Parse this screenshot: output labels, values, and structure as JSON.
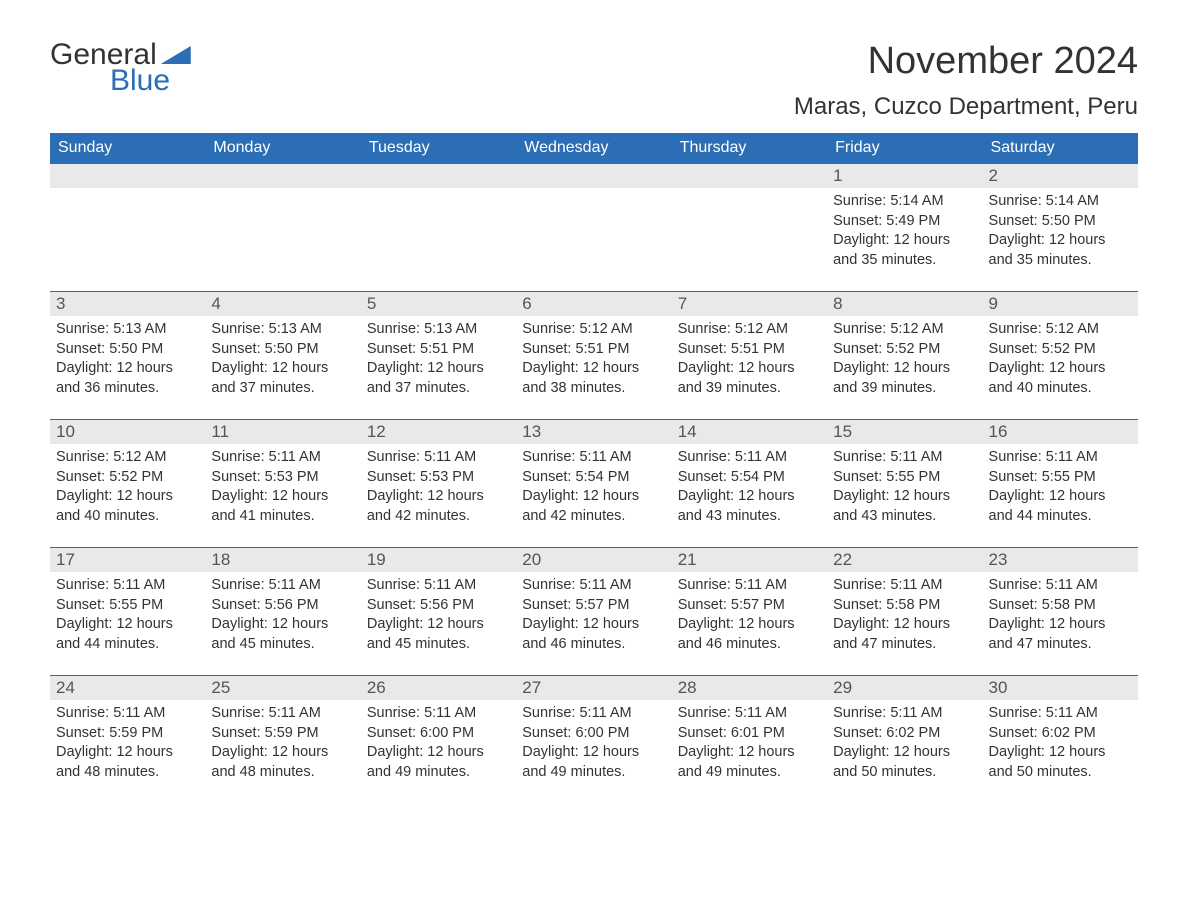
{
  "logo": {
    "text_general": "General",
    "text_blue": "Blue"
  },
  "title": "November 2024",
  "location": "Maras, Cuzco Department, Peru",
  "styling": {
    "header_bg": "#2b6eb5",
    "header_text": "#ffffff",
    "day_num_bg": "#e9e9e9",
    "day_num_text": "#555555",
    "body_text": "#333333",
    "row_border": "#2b6eb5",
    "background": "#ffffff",
    "columns": 7,
    "rows": 5,
    "font_family": "Arial",
    "title_fontsize": 38,
    "location_fontsize": 24,
    "header_fontsize": 16,
    "daynum_fontsize": 17,
    "content_fontsize": 14.5
  },
  "weekdays": [
    "Sunday",
    "Monday",
    "Tuesday",
    "Wednesday",
    "Thursday",
    "Friday",
    "Saturday"
  ],
  "weeks": [
    [
      null,
      null,
      null,
      null,
      null,
      {
        "n": "1",
        "sunrise": "Sunrise: 5:14 AM",
        "sunset": "Sunset: 5:49 PM",
        "dl1": "Daylight: 12 hours",
        "dl2": "and 35 minutes."
      },
      {
        "n": "2",
        "sunrise": "Sunrise: 5:14 AM",
        "sunset": "Sunset: 5:50 PM",
        "dl1": "Daylight: 12 hours",
        "dl2": "and 35 minutes."
      }
    ],
    [
      {
        "n": "3",
        "sunrise": "Sunrise: 5:13 AM",
        "sunset": "Sunset: 5:50 PM",
        "dl1": "Daylight: 12 hours",
        "dl2": "and 36 minutes."
      },
      {
        "n": "4",
        "sunrise": "Sunrise: 5:13 AM",
        "sunset": "Sunset: 5:50 PM",
        "dl1": "Daylight: 12 hours",
        "dl2": "and 37 minutes."
      },
      {
        "n": "5",
        "sunrise": "Sunrise: 5:13 AM",
        "sunset": "Sunset: 5:51 PM",
        "dl1": "Daylight: 12 hours",
        "dl2": "and 37 minutes."
      },
      {
        "n": "6",
        "sunrise": "Sunrise: 5:12 AM",
        "sunset": "Sunset: 5:51 PM",
        "dl1": "Daylight: 12 hours",
        "dl2": "and 38 minutes."
      },
      {
        "n": "7",
        "sunrise": "Sunrise: 5:12 AM",
        "sunset": "Sunset: 5:51 PM",
        "dl1": "Daylight: 12 hours",
        "dl2": "and 39 minutes."
      },
      {
        "n": "8",
        "sunrise": "Sunrise: 5:12 AM",
        "sunset": "Sunset: 5:52 PM",
        "dl1": "Daylight: 12 hours",
        "dl2": "and 39 minutes."
      },
      {
        "n": "9",
        "sunrise": "Sunrise: 5:12 AM",
        "sunset": "Sunset: 5:52 PM",
        "dl1": "Daylight: 12 hours",
        "dl2": "and 40 minutes."
      }
    ],
    [
      {
        "n": "10",
        "sunrise": "Sunrise: 5:12 AM",
        "sunset": "Sunset: 5:52 PM",
        "dl1": "Daylight: 12 hours",
        "dl2": "and 40 minutes."
      },
      {
        "n": "11",
        "sunrise": "Sunrise: 5:11 AM",
        "sunset": "Sunset: 5:53 PM",
        "dl1": "Daylight: 12 hours",
        "dl2": "and 41 minutes."
      },
      {
        "n": "12",
        "sunrise": "Sunrise: 5:11 AM",
        "sunset": "Sunset: 5:53 PM",
        "dl1": "Daylight: 12 hours",
        "dl2": "and 42 minutes."
      },
      {
        "n": "13",
        "sunrise": "Sunrise: 5:11 AM",
        "sunset": "Sunset: 5:54 PM",
        "dl1": "Daylight: 12 hours",
        "dl2": "and 42 minutes."
      },
      {
        "n": "14",
        "sunrise": "Sunrise: 5:11 AM",
        "sunset": "Sunset: 5:54 PM",
        "dl1": "Daylight: 12 hours",
        "dl2": "and 43 minutes."
      },
      {
        "n": "15",
        "sunrise": "Sunrise: 5:11 AM",
        "sunset": "Sunset: 5:55 PM",
        "dl1": "Daylight: 12 hours",
        "dl2": "and 43 minutes."
      },
      {
        "n": "16",
        "sunrise": "Sunrise: 5:11 AM",
        "sunset": "Sunset: 5:55 PM",
        "dl1": "Daylight: 12 hours",
        "dl2": "and 44 minutes."
      }
    ],
    [
      {
        "n": "17",
        "sunrise": "Sunrise: 5:11 AM",
        "sunset": "Sunset: 5:55 PM",
        "dl1": "Daylight: 12 hours",
        "dl2": "and 44 minutes."
      },
      {
        "n": "18",
        "sunrise": "Sunrise: 5:11 AM",
        "sunset": "Sunset: 5:56 PM",
        "dl1": "Daylight: 12 hours",
        "dl2": "and 45 minutes."
      },
      {
        "n": "19",
        "sunrise": "Sunrise: 5:11 AM",
        "sunset": "Sunset: 5:56 PM",
        "dl1": "Daylight: 12 hours",
        "dl2": "and 45 minutes."
      },
      {
        "n": "20",
        "sunrise": "Sunrise: 5:11 AM",
        "sunset": "Sunset: 5:57 PM",
        "dl1": "Daylight: 12 hours",
        "dl2": "and 46 minutes."
      },
      {
        "n": "21",
        "sunrise": "Sunrise: 5:11 AM",
        "sunset": "Sunset: 5:57 PM",
        "dl1": "Daylight: 12 hours",
        "dl2": "and 46 minutes."
      },
      {
        "n": "22",
        "sunrise": "Sunrise: 5:11 AM",
        "sunset": "Sunset: 5:58 PM",
        "dl1": "Daylight: 12 hours",
        "dl2": "and 47 minutes."
      },
      {
        "n": "23",
        "sunrise": "Sunrise: 5:11 AM",
        "sunset": "Sunset: 5:58 PM",
        "dl1": "Daylight: 12 hours",
        "dl2": "and 47 minutes."
      }
    ],
    [
      {
        "n": "24",
        "sunrise": "Sunrise: 5:11 AM",
        "sunset": "Sunset: 5:59 PM",
        "dl1": "Daylight: 12 hours",
        "dl2": "and 48 minutes."
      },
      {
        "n": "25",
        "sunrise": "Sunrise: 5:11 AM",
        "sunset": "Sunset: 5:59 PM",
        "dl1": "Daylight: 12 hours",
        "dl2": "and 48 minutes."
      },
      {
        "n": "26",
        "sunrise": "Sunrise: 5:11 AM",
        "sunset": "Sunset: 6:00 PM",
        "dl1": "Daylight: 12 hours",
        "dl2": "and 49 minutes."
      },
      {
        "n": "27",
        "sunrise": "Sunrise: 5:11 AM",
        "sunset": "Sunset: 6:00 PM",
        "dl1": "Daylight: 12 hours",
        "dl2": "and 49 minutes."
      },
      {
        "n": "28",
        "sunrise": "Sunrise: 5:11 AM",
        "sunset": "Sunset: 6:01 PM",
        "dl1": "Daylight: 12 hours",
        "dl2": "and 49 minutes."
      },
      {
        "n": "29",
        "sunrise": "Sunrise: 5:11 AM",
        "sunset": "Sunset: 6:02 PM",
        "dl1": "Daylight: 12 hours",
        "dl2": "and 50 minutes."
      },
      {
        "n": "30",
        "sunrise": "Sunrise: 5:11 AM",
        "sunset": "Sunset: 6:02 PM",
        "dl1": "Daylight: 12 hours",
        "dl2": "and 50 minutes."
      }
    ]
  ]
}
